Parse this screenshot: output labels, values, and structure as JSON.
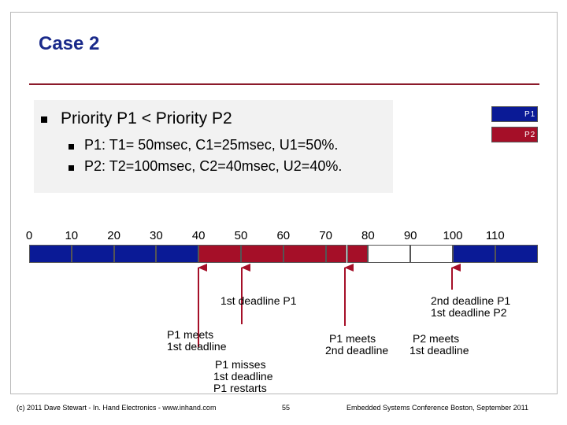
{
  "title": "Case 2",
  "bullets": {
    "main": "Priority P1 < Priority P2",
    "sub1": "P1: T1= 50msec, C1=25msec, U1=50%.",
    "sub2": "P2: T2=100msec, C2=40msec, U2=40%."
  },
  "legend": [
    {
      "label": "P1",
      "color": "#0a1a96"
    },
    {
      "label": "P2",
      "color": "#a50f28"
    }
  ],
  "timeline": {
    "ticks": [
      "0",
      "10",
      "20",
      "30",
      "40",
      "50",
      "60",
      "70",
      "80",
      "90",
      "100",
      "110"
    ],
    "segments": [
      {
        "start": 0,
        "end": 10,
        "process": "P1"
      },
      {
        "start": 10,
        "end": 20,
        "process": "P1"
      },
      {
        "start": 20,
        "end": 30,
        "process": "P1"
      },
      {
        "start": 30,
        "end": 40,
        "process": "P1"
      },
      {
        "start": 40,
        "end": 50,
        "process": "P2"
      },
      {
        "start": 50,
        "end": 60,
        "process": "P2"
      },
      {
        "start": 60,
        "end": 70,
        "process": "P2"
      },
      {
        "start": 70,
        "end": 75,
        "process": "P2"
      },
      {
        "start": 75,
        "end": 80,
        "process": "P2"
      },
      {
        "start": 80,
        "end": 90,
        "process": "idle"
      },
      {
        "start": 90,
        "end": 100,
        "process": "idle"
      },
      {
        "start": 100,
        "end": 110,
        "process": "P1"
      },
      {
        "start": 110,
        "end": 120,
        "process": "P1"
      }
    ],
    "idle_color": "#ffffff"
  },
  "annotations": {
    "first_deadline_p1": "1st deadline P1",
    "second_deadline_p1": "2nd deadline P1",
    "first_deadline_p2": "1st deadline P2",
    "p1_meets_1": "P1 meets",
    "p1_meets_1b": "1st deadline",
    "p1_misses_1": "P1 misses",
    "p1_misses_2": "1st deadline",
    "p1_misses_3": "P1 restarts",
    "p1_meets_2": "P1 meets",
    "p1_meets_2b": "2nd deadline",
    "p2_meets_1": "P2 meets",
    "p2_meets_1b": "1st deadline"
  },
  "footer": {
    "left": "(c) 2011 Dave Stewart - In. Hand Electronics - www.inhand.com",
    "page": "55",
    "right": "Embedded Systems Conference Boston, September 2011"
  }
}
